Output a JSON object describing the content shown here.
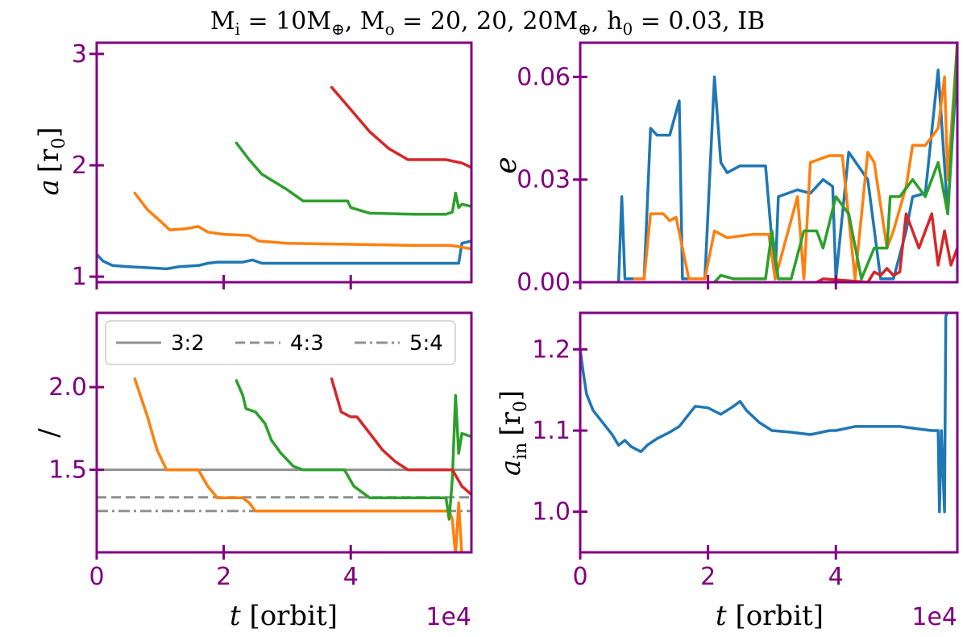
{
  "title": "M_i = 10M_⊕, M_o = 20, 20, 20M_⊕, h_0 = 0.03,  IB",
  "title_parts": {
    "Mi_label": "M",
    "Mi_sub": "i",
    "eq1": " = 10M",
    "earth1": "⊕",
    "comma1": ", M",
    "Mo_sub": "o",
    "eq2": " = 20, 20, 20M",
    "earth2": "⊕",
    "comma2": ", h",
    "h_sub": "0",
    "eq3": " = 0.03,  IB"
  },
  "colors": {
    "spine": "#800080",
    "tick_label": "#800080",
    "blue": "#1f77b4",
    "orange": "#ff7f0e",
    "green": "#2ca02c",
    "red": "#d62728",
    "ref_line": "#909090"
  },
  "chart_data": [
    {
      "type": "line",
      "panel": "top-left",
      "ylabel": "a [r0]",
      "ylabel_parts": {
        "var": "a",
        "unit": "[r",
        "unit_sub": "0",
        "close": "]"
      },
      "xlim": [
        0,
        5.9
      ],
      "ylim": [
        0.95,
        3.1
      ],
      "xticks": [
        0,
        2,
        4
      ],
      "xtick_labels": [
        "",
        "",
        ""
      ],
      "yticks": [
        1,
        2,
        3
      ],
      "ytick_labels": [
        "1",
        "2",
        "3"
      ],
      "series": [
        {
          "color": "blue",
          "x": [
            0,
            0.1,
            0.25,
            0.5,
            0.8,
            1.1,
            1.3,
            1.6,
            1.75,
            1.9,
            2.3,
            2.45,
            2.6,
            3.0,
            4.0,
            5.0,
            5.7,
            5.75,
            5.9
          ],
          "y": [
            1.2,
            1.14,
            1.1,
            1.09,
            1.08,
            1.07,
            1.09,
            1.1,
            1.12,
            1.13,
            1.13,
            1.15,
            1.12,
            1.12,
            1.12,
            1.12,
            1.12,
            1.3,
            1.32
          ]
        },
        {
          "color": "orange",
          "x": [
            0.6,
            0.8,
            1.0,
            1.15,
            1.4,
            1.6,
            1.75,
            2.0,
            2.4,
            2.55,
            3.0,
            4.0,
            5.0,
            5.55,
            5.7,
            5.9
          ],
          "y": [
            1.75,
            1.6,
            1.5,
            1.42,
            1.43,
            1.45,
            1.4,
            1.38,
            1.37,
            1.32,
            1.3,
            1.29,
            1.28,
            1.28,
            1.27,
            1.25
          ]
        },
        {
          "color": "green",
          "x": [
            2.2,
            2.4,
            2.6,
            3.0,
            3.25,
            3.5,
            3.95,
            4.0,
            4.3,
            5.0,
            5.5,
            5.6,
            5.65,
            5.7,
            5.75,
            5.9
          ],
          "y": [
            2.2,
            2.05,
            1.92,
            1.78,
            1.68,
            1.68,
            1.68,
            1.62,
            1.57,
            1.56,
            1.56,
            1.58,
            1.75,
            1.62,
            1.65,
            1.63
          ]
        },
        {
          "color": "red",
          "x": [
            3.7,
            4.0,
            4.3,
            4.6,
            4.9,
            5.0,
            5.5,
            5.75,
            5.9
          ],
          "y": [
            2.7,
            2.5,
            2.3,
            2.15,
            2.05,
            2.05,
            2.05,
            2.02,
            1.98
          ]
        }
      ]
    },
    {
      "type": "line",
      "panel": "top-right",
      "ylabel": "e",
      "xlim": [
        0,
        5.9
      ],
      "ylim": [
        0,
        0.07
      ],
      "xticks": [
        0,
        2,
        4
      ],
      "xtick_labels": [
        "",
        "",
        ""
      ],
      "yticks": [
        0,
        0.03,
        0.06
      ],
      "ytick_labels": [
        "0.00",
        "0.03",
        "0.06"
      ],
      "series": [
        {
          "color": "blue",
          "x": [
            0.6,
            0.65,
            0.7,
            0.75,
            1.0,
            1.1,
            1.2,
            1.4,
            1.55,
            1.6,
            1.7,
            1.95,
            2.1,
            2.2,
            2.3,
            2.5,
            2.9,
            3.05,
            3.1,
            3.4,
            3.6,
            3.8,
            3.95,
            4.0,
            4.2,
            4.5,
            4.7,
            4.9,
            5.1,
            5.2,
            5.4,
            5.6,
            5.75,
            5.9
          ],
          "y": [
            0,
            0.025,
            0.001,
            0.001,
            0.001,
            0.045,
            0.043,
            0.043,
            0.053,
            0.001,
            0.001,
            0.001,
            0.06,
            0.035,
            0.032,
            0.034,
            0.034,
            0.001,
            0.025,
            0.027,
            0.026,
            0.03,
            0.028,
            0.001,
            0.038,
            0.03,
            0.001,
            0.001,
            0.015,
            0.025,
            0.026,
            0.062,
            0.02,
            0.065
          ]
        },
        {
          "color": "orange",
          "x": [
            0.85,
            1.0,
            1.1,
            1.3,
            1.4,
            1.5,
            1.7,
            1.95,
            2.1,
            2.3,
            2.7,
            2.95,
            3.05,
            3.4,
            3.5,
            3.6,
            3.9,
            4.1,
            4.3,
            4.5,
            4.6,
            4.8,
            4.9,
            5.1,
            5.2,
            5.4,
            5.6,
            5.7,
            5.75,
            5.9
          ],
          "y": [
            0.001,
            0.001,
            0.02,
            0.02,
            0.018,
            0.019,
            0.001,
            0.001,
            0.015,
            0.013,
            0.014,
            0.014,
            0.001,
            0.025,
            0.001,
            0.035,
            0.037,
            0.037,
            0.001,
            0.038,
            0.035,
            0.01,
            0.015,
            0.028,
            0.04,
            0.04,
            0.045,
            0.06,
            0.03,
            0.07
          ]
        },
        {
          "color": "green",
          "x": [
            2.1,
            2.2,
            2.4,
            2.7,
            2.9,
            3.0,
            3.1,
            3.3,
            3.5,
            3.7,
            3.8,
            4.0,
            4.2,
            4.4,
            4.6,
            4.8,
            4.85,
            5.0,
            5.2,
            5.4,
            5.6,
            5.75,
            5.9
          ],
          "y": [
            0.0,
            0.002,
            0.001,
            0.001,
            0.001,
            0.015,
            0.001,
            0.001,
            0.015,
            0.015,
            0.01,
            0.025,
            0.02,
            0.001,
            0.01,
            0.01,
            0.025,
            0.025,
            0.03,
            0.025,
            0.035,
            0.02,
            0.07
          ]
        },
        {
          "color": "red",
          "x": [
            3.7,
            3.8,
            4.5,
            4.6,
            4.7,
            4.8,
            4.9,
            5.0,
            5.1,
            5.3,
            5.5,
            5.6,
            5.7,
            5.8,
            5.9
          ],
          "y": [
            0.0,
            0.001,
            0.0,
            0.003,
            0.002,
            0.004,
            0.002,
            0.003,
            0.02,
            0.01,
            0.02,
            0.005,
            0.015,
            0.005,
            0.01
          ]
        }
      ]
    },
    {
      "type": "line",
      "panel": "bottom-left",
      "ylabel": "/",
      "xlabel": "t [orbit]",
      "xlabel_parts": {
        "var": "t",
        "unit": " [orbit]"
      },
      "x_multiplier": "1e4",
      "xlim": [
        0,
        5.9
      ],
      "ylim": [
        1.0,
        2.45
      ],
      "xticks": [
        0,
        2,
        4
      ],
      "xtick_labels": [
        "0",
        "2",
        "4"
      ],
      "yticks": [
        1.5,
        2.0
      ],
      "ytick_labels": [
        "1.5",
        "2.0"
      ],
      "legend": {
        "placement": "top",
        "entries": [
          {
            "label": "3:2",
            "style": "solid"
          },
          {
            "label": "4:3",
            "style": "dashed"
          },
          {
            "label": "5:4",
            "style": "dashdot"
          }
        ]
      },
      "reference_lines": [
        {
          "label": "3:2",
          "y": 1.5,
          "style": "solid"
        },
        {
          "label": "4:3",
          "y": 1.333,
          "style": "dashed"
        },
        {
          "label": "5:4",
          "y": 1.25,
          "style": "dashdot"
        }
      ],
      "series": [
        {
          "color": "orange",
          "x": [
            0.6,
            0.8,
            0.95,
            1.1,
            1.5,
            1.6,
            1.75,
            1.9,
            2.3,
            2.4,
            2.5,
            3.0,
            4.0,
            5.0,
            5.55,
            5.6,
            5.65,
            5.7,
            5.75
          ],
          "y": [
            2.05,
            1.82,
            1.62,
            1.5,
            1.5,
            1.5,
            1.4,
            1.33,
            1.33,
            1.3,
            1.25,
            1.25,
            1.25,
            1.25,
            1.25,
            1.2,
            0.98,
            1.3,
            0.98
          ]
        },
        {
          "color": "green",
          "x": [
            2.2,
            2.3,
            2.35,
            2.5,
            2.65,
            2.75,
            2.9,
            3.1,
            3.25,
            3.5,
            3.9,
            4.05,
            4.3,
            5.0,
            5.5,
            5.55,
            5.6,
            5.65,
            5.7,
            5.75,
            5.9
          ],
          "y": [
            2.04,
            1.95,
            1.87,
            1.85,
            1.78,
            1.68,
            1.6,
            1.52,
            1.5,
            1.5,
            1.5,
            1.4,
            1.33,
            1.33,
            1.33,
            1.2,
            1.45,
            1.95,
            1.6,
            1.72,
            1.7
          ]
        },
        {
          "color": "red",
          "x": [
            3.7,
            3.85,
            4.0,
            4.1,
            4.3,
            4.5,
            4.7,
            4.9,
            5.0,
            5.5,
            5.6,
            5.75,
            5.9
          ],
          "y": [
            2.05,
            1.85,
            1.82,
            1.82,
            1.72,
            1.62,
            1.55,
            1.5,
            1.5,
            1.5,
            1.5,
            1.4,
            1.35
          ]
        }
      ]
    },
    {
      "type": "line",
      "panel": "bottom-right",
      "ylabel": "a_in [r0]",
      "ylabel_parts": {
        "var": "a",
        "var_sub": "in",
        "unit": "[r",
        "unit_sub": "0",
        "close": "]"
      },
      "xlabel": "t [orbit]",
      "xlabel_parts": {
        "var": "t",
        "unit": " [orbit]"
      },
      "x_multiplier": "1e4",
      "xlim": [
        0,
        5.9
      ],
      "ylim": [
        0.95,
        1.245
      ],
      "xticks": [
        0,
        2,
        4
      ],
      "xtick_labels": [
        "0",
        "2",
        "4"
      ],
      "yticks": [
        1.0,
        1.1,
        1.2
      ],
      "ytick_labels": [
        "1.0",
        "1.1",
        "1.2"
      ],
      "series": [
        {
          "color": "blue",
          "x": [
            0,
            0.05,
            0.1,
            0.2,
            0.35,
            0.5,
            0.6,
            0.7,
            0.8,
            0.95,
            1.05,
            1.2,
            1.4,
            1.55,
            1.7,
            1.8,
            2.0,
            2.2,
            2.4,
            2.5,
            2.6,
            2.8,
            3.0,
            3.3,
            3.6,
            3.9,
            4.0,
            4.3,
            4.7,
            5.0,
            5.3,
            5.5,
            5.6,
            5.62,
            5.65,
            5.7,
            5.72,
            5.75
          ],
          "y": [
            1.2,
            1.17,
            1.145,
            1.125,
            1.11,
            1.095,
            1.082,
            1.088,
            1.08,
            1.074,
            1.082,
            1.09,
            1.098,
            1.105,
            1.12,
            1.13,
            1.128,
            1.12,
            1.13,
            1.136,
            1.125,
            1.11,
            1.1,
            1.098,
            1.095,
            1.1,
            1.1,
            1.105,
            1.105,
            1.105,
            1.102,
            1.1,
            1.1,
            1.0,
            1.1,
            1.0,
            1.24,
            1.25
          ]
        }
      ]
    }
  ]
}
